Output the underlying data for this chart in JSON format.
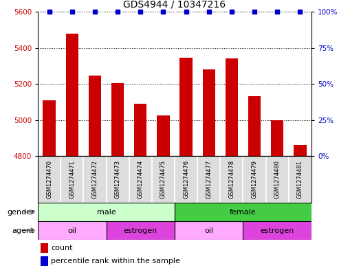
{
  "title": "GDS4944 / 10347216",
  "samples": [
    "GSM1274470",
    "GSM1274471",
    "GSM1274472",
    "GSM1274473",
    "GSM1274474",
    "GSM1274475",
    "GSM1274476",
    "GSM1274477",
    "GSM1274478",
    "GSM1274479",
    "GSM1274480",
    "GSM1274481"
  ],
  "counts": [
    5110,
    5480,
    5245,
    5205,
    5090,
    5025,
    5345,
    5280,
    5340,
    5130,
    5000,
    4860
  ],
  "ylim_left": [
    4800,
    5600
  ],
  "ylim_right": [
    0,
    100
  ],
  "yticks_left": [
    4800,
    5000,
    5200,
    5400,
    5600
  ],
  "yticks_right": [
    0,
    25,
    50,
    75,
    100
  ],
  "bar_color": "#cc0000",
  "dot_color": "#0000cc",
  "gender_groups": [
    {
      "label": "male",
      "start": 0,
      "end": 6,
      "color": "#ccffcc"
    },
    {
      "label": "female",
      "start": 6,
      "end": 12,
      "color": "#44cc44"
    }
  ],
  "agent_groups": [
    {
      "label": "oil",
      "start": 0,
      "end": 3,
      "color": "#ffaaff"
    },
    {
      "label": "estrogen",
      "start": 3,
      "end": 6,
      "color": "#dd44dd"
    },
    {
      "label": "oil",
      "start": 6,
      "end": 9,
      "color": "#ffaaff"
    },
    {
      "label": "estrogen",
      "start": 9,
      "end": 12,
      "color": "#dd44dd"
    }
  ],
  "legend_count_color": "#cc0000",
  "legend_percentile_color": "#0000cc",
  "background_color": "#ffffff",
  "tick_label_color_left": "#cc0000",
  "tick_label_color_right": "#0000cc",
  "sample_box_color": "#dddddd",
  "bar_width": 0.55,
  "dot_size": 20,
  "grid_linestyle": "dotted",
  "grid_color": "#000000",
  "title_fontsize": 10,
  "axis_fontsize": 7.5,
  "label_fontsize": 8,
  "sample_fontsize": 6,
  "legend_fontsize": 8
}
